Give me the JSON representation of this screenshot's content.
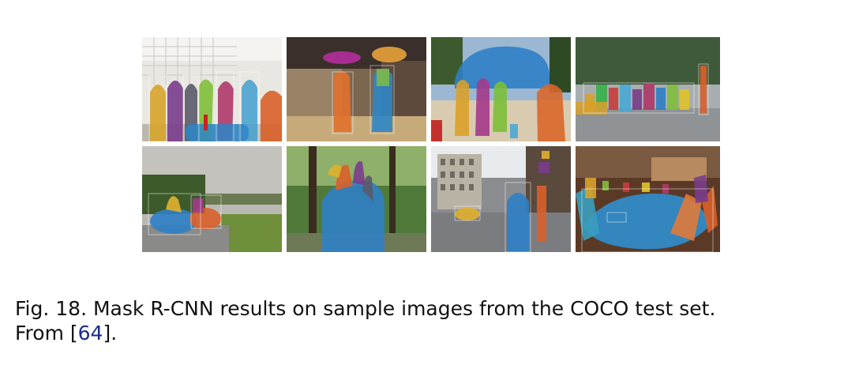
{
  "figure": {
    "panel_count": 8,
    "panels": [
      {
        "scene": "indoor-people-room"
      },
      {
        "scene": "street-umbrellas"
      },
      {
        "scene": "beach-bus-crowd"
      },
      {
        "scene": "park-crowd"
      },
      {
        "scene": "road-motorcycles-hills"
      },
      {
        "scene": "forest-elephant-riders"
      },
      {
        "scene": "city-street-taxi"
      },
      {
        "scene": "dining-room-table"
      }
    ]
  },
  "caption": {
    "text_before": "Fig. 18. Mask R-CNN results on sample images from the COCO test set.",
    "line2_prefix": "From [",
    "citation": "64",
    "line2_suffix": "].",
    "citation_color": "#1a2a8c"
  }
}
